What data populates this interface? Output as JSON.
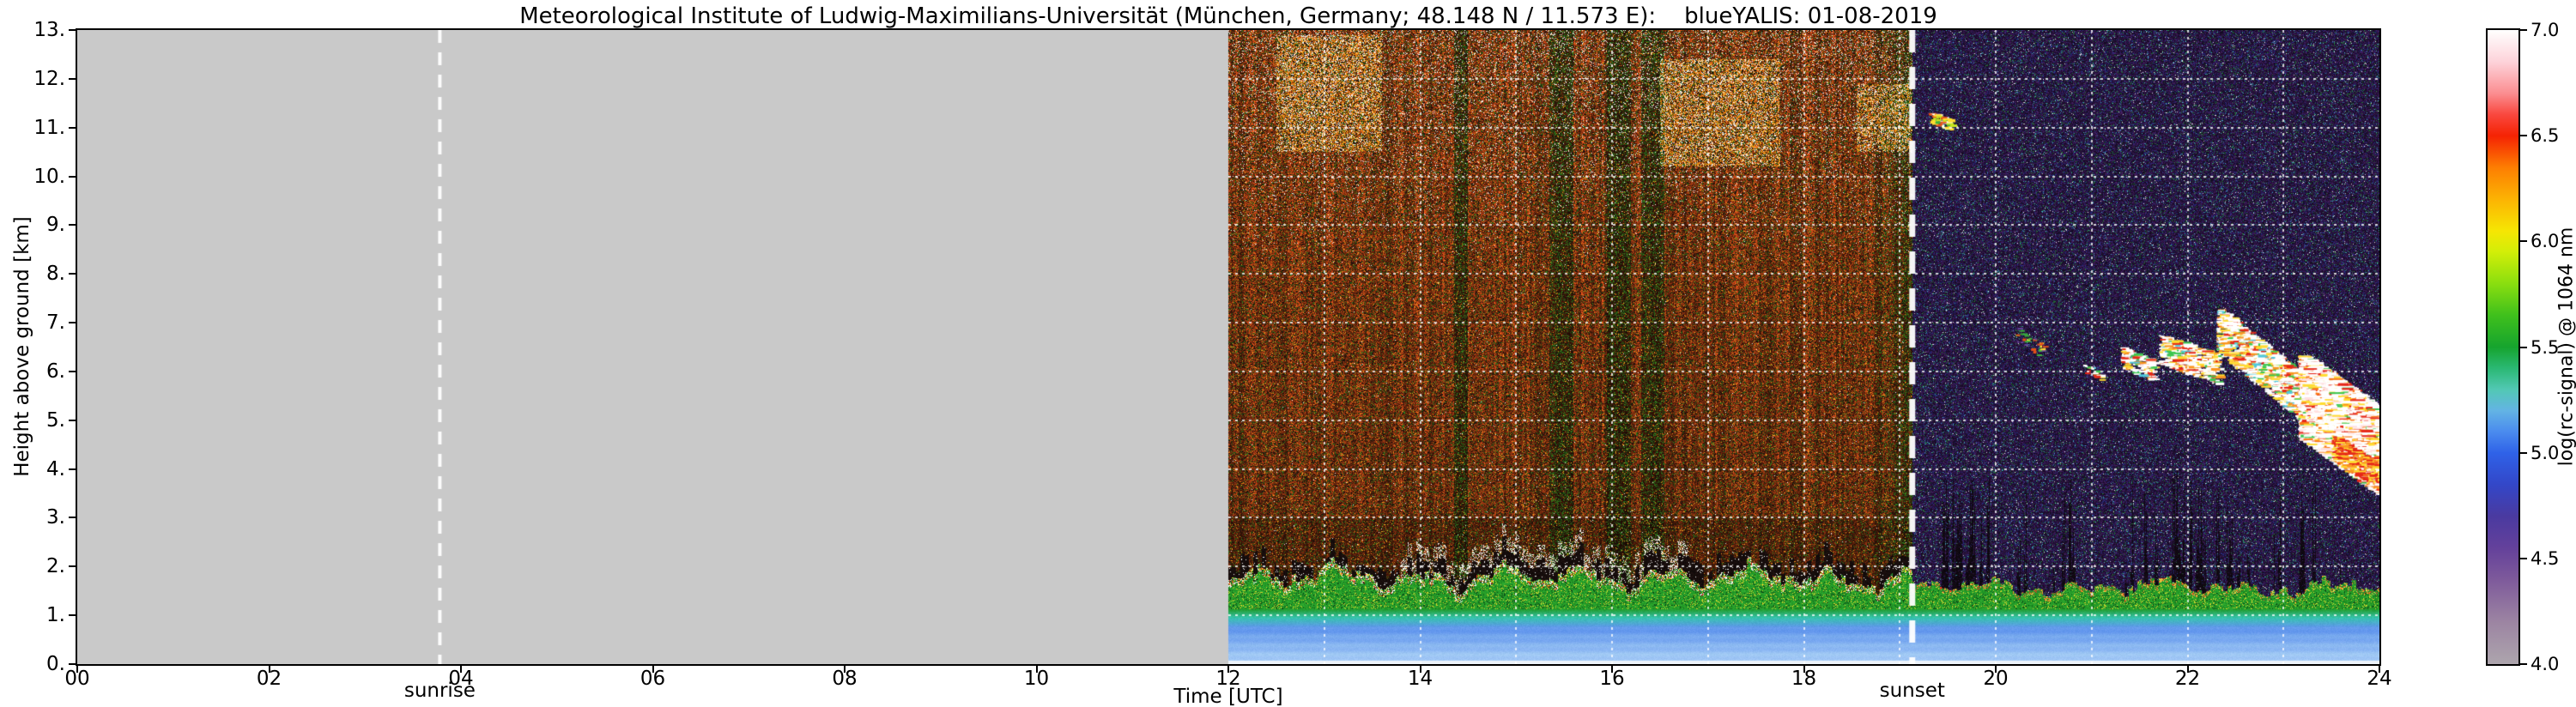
{
  "chart_data": {
    "type": "heatmap",
    "title": "Meteorological Institute of Ludwig-Maximilians-Universität (München, Germany; 48.148 N / 11.573 E):    blueYALIS: 01-08-2019",
    "xlabel": "Time [UTC]",
    "ylabel": "Height above ground [km]",
    "xlim": [
      0,
      24
    ],
    "ylim": [
      0,
      13
    ],
    "x_ticks": {
      "values": [
        0,
        2,
        4,
        6,
        8,
        10,
        12,
        14,
        16,
        18,
        20,
        22,
        24
      ],
      "labels": [
        "00",
        "02",
        "04",
        "06",
        "08",
        "10",
        "12",
        "14",
        "16",
        "18",
        "20",
        "22",
        "24"
      ]
    },
    "y_ticks": {
      "values": [
        0,
        1,
        2,
        3,
        4,
        5,
        6,
        7,
        8,
        9,
        10,
        11,
        12,
        13
      ],
      "labels": [
        "0.",
        "1.",
        "2.",
        "3.",
        "4.",
        "5.",
        "6.",
        "7.",
        "8.",
        "9.",
        "10.",
        "11.",
        "12.",
        "13."
      ]
    },
    "grid": {
      "style": "dotted",
      "color": "#ffffff",
      "horizontal_km": [
        1,
        2,
        3,
        4,
        5,
        6,
        7,
        8,
        9,
        10,
        11,
        12
      ],
      "vertical_utc": [
        13,
        14,
        15,
        16,
        17,
        18,
        19,
        20,
        21,
        22,
        23
      ]
    },
    "annotations": {
      "sunrise": {
        "label": "sunrise",
        "time_utc": 3.78
      },
      "sunset": {
        "label": "sunset",
        "time_utc": 19.13
      }
    },
    "colorbar": {
      "label": "log(rc-signal) @ 1064 nm",
      "range": [
        4.0,
        7.0
      ],
      "tick_labels": [
        "7.0",
        "6.5",
        "6.0",
        "5.5",
        "5.0",
        "4.5",
        "4.0"
      ],
      "stops": [
        [
          4.0,
          "#ada5ad"
        ],
        [
          4.2,
          "#9c84a2"
        ],
        [
          4.4,
          "#7e5a9b"
        ],
        [
          4.55,
          "#64419b"
        ],
        [
          4.7,
          "#4a3aa0"
        ],
        [
          4.85,
          "#3347c8"
        ],
        [
          5.0,
          "#2f62e8"
        ],
        [
          5.1,
          "#4b8cee"
        ],
        [
          5.2,
          "#63b4e4"
        ],
        [
          5.3,
          "#52c8b4"
        ],
        [
          5.4,
          "#2ab873"
        ],
        [
          5.5,
          "#16a42e"
        ],
        [
          5.65,
          "#3fc01c"
        ],
        [
          5.8,
          "#8ade0f"
        ],
        [
          5.95,
          "#d2ee08"
        ],
        [
          6.05,
          "#f6e603"
        ],
        [
          6.2,
          "#fcb303"
        ],
        [
          6.35,
          "#fd7e02"
        ],
        [
          6.5,
          "#f52303"
        ],
        [
          6.6,
          "#f9483f"
        ],
        [
          6.7,
          "#fb8d90"
        ],
        [
          6.85,
          "#fdd3da"
        ],
        [
          7.0,
          "#ffffff"
        ]
      ]
    },
    "no_data": {
      "t0": 0,
      "t1": 12,
      "color": "#c9c9c9"
    },
    "day": {
      "t0": 12.0,
      "t1": 19.13,
      "hot_patches": [
        [
          12.5,
          13.6,
          10.5,
          12.9
        ],
        [
          16.5,
          17.75,
          10.2,
          12.4
        ],
        [
          18.55,
          19.12,
          10.5,
          11.9
        ]
      ],
      "dark_bands": [
        [
          14.35,
          14.5
        ],
        [
          15.35,
          15.6
        ],
        [
          15.95,
          16.2
        ],
        [
          16.3,
          16.55
        ]
      ]
    },
    "night": {
      "t0": 19.13,
      "t1": 24.0,
      "black_streaks": [
        [
          19.35,
          20.35
        ],
        [
          20.6,
          20.9
        ],
        [
          21.35,
          22.65
        ],
        [
          22.9,
          23.6
        ]
      ]
    },
    "boundary_layer": {
      "surface_blue_top_km": 0.95,
      "mixed_layer_top_day_km": 2.0,
      "mixed_layer_top_night_km": 1.7
    },
    "clouds": [
      {
        "t0": 19.3,
        "t1": 19.52,
        "h_top0": 11.32,
        "h_top1": 11.18,
        "thick": 0.22,
        "count": 70,
        "streak": 9,
        "palette": [
          [
            0.28,
            "#c8e61e"
          ],
          [
            0.24,
            "#ffdc32"
          ],
          [
            0.2,
            "#e65019"
          ],
          [
            0.16,
            "#3cb43c"
          ],
          [
            0.12,
            "#ffffff"
          ]
        ]
      },
      {
        "t0": 20.2,
        "t1": 20.5,
        "h_top0": 6.95,
        "h_top1": 6.55,
        "thick": 0.3,
        "count": 28,
        "streak": 6,
        "palette": [
          [
            0.35,
            "#3cb43c"
          ],
          [
            0.25,
            "#e65019"
          ],
          [
            0.2,
            "#ffdc32"
          ],
          [
            0.2,
            "#64469b"
          ]
        ]
      },
      {
        "t0": 20.9,
        "t1": 21.1,
        "h_top0": 6.15,
        "h_top1": 6.0,
        "thick": 0.2,
        "count": 22,
        "streak": 6,
        "palette": [
          [
            0.5,
            "#ffffff"
          ],
          [
            0.14,
            "#ffdc32"
          ],
          [
            0.12,
            "#fa9620"
          ],
          [
            0.12,
            "#e62819"
          ],
          [
            0.08,
            "#3cc850"
          ],
          [
            0.04,
            "#50c8dc"
          ]
        ]
      },
      {
        "t0": 21.3,
        "t1": 21.65,
        "h_top0": 6.5,
        "h_top1": 6.2,
        "thick": 0.4,
        "count": 150,
        "streak": 10,
        "palette": [
          [
            0.5,
            "#ffffff"
          ],
          [
            0.14,
            "#ffdc32"
          ],
          [
            0.12,
            "#fa9620"
          ],
          [
            0.12,
            "#e62819"
          ],
          [
            0.08,
            "#3cc850"
          ],
          [
            0.04,
            "#50c8dc"
          ]
        ]
      },
      {
        "t0": 21.7,
        "t1": 22.3,
        "h_top0": 6.75,
        "h_top1": 6.35,
        "thick": 0.6,
        "count": 430,
        "streak": 12,
        "palette": [
          [
            0.5,
            "#ffffff"
          ],
          [
            0.14,
            "#ffdc32"
          ],
          [
            0.12,
            "#fa9620"
          ],
          [
            0.12,
            "#e62819"
          ],
          [
            0.08,
            "#3cc850"
          ],
          [
            0.04,
            "#50c8dc"
          ]
        ]
      },
      {
        "t0": 22.3,
        "t1": 23.3,
        "h_top0": 7.3,
        "h_top1": 5.7,
        "thick": 0.9,
        "count": 1500,
        "streak": 12,
        "palette": [
          [
            0.5,
            "#ffffff"
          ],
          [
            0.14,
            "#ffdc32"
          ],
          [
            0.12,
            "#fa9620"
          ],
          [
            0.12,
            "#e62819"
          ],
          [
            0.08,
            "#3cc850"
          ],
          [
            0.04,
            "#50c8dc"
          ]
        ]
      },
      {
        "t0": 23.15,
        "t1": 24.0,
        "h_top0": 6.35,
        "h_top1": 5.15,
        "thick": 1.7,
        "count": 5200,
        "streak": 16,
        "palette": [
          [
            0.62,
            "#ffffff"
          ],
          [
            0.1,
            "#ffe0e0"
          ],
          [
            0.09,
            "#ffdc32"
          ],
          [
            0.09,
            "#fa7818"
          ],
          [
            0.07,
            "#e62819"
          ],
          [
            0.03,
            "#3cc850"
          ]
        ]
      },
      {
        "t0": 23.5,
        "t1": 24.0,
        "h_top0": 4.7,
        "h_top1": 4.05,
        "thick": 0.5,
        "count": 420,
        "streak": 10,
        "palette": [
          [
            0.38,
            "#e62819"
          ],
          [
            0.3,
            "#fa9620"
          ],
          [
            0.22,
            "#ffdc32"
          ],
          [
            0.1,
            "#ffffff"
          ]
        ]
      }
    ]
  }
}
